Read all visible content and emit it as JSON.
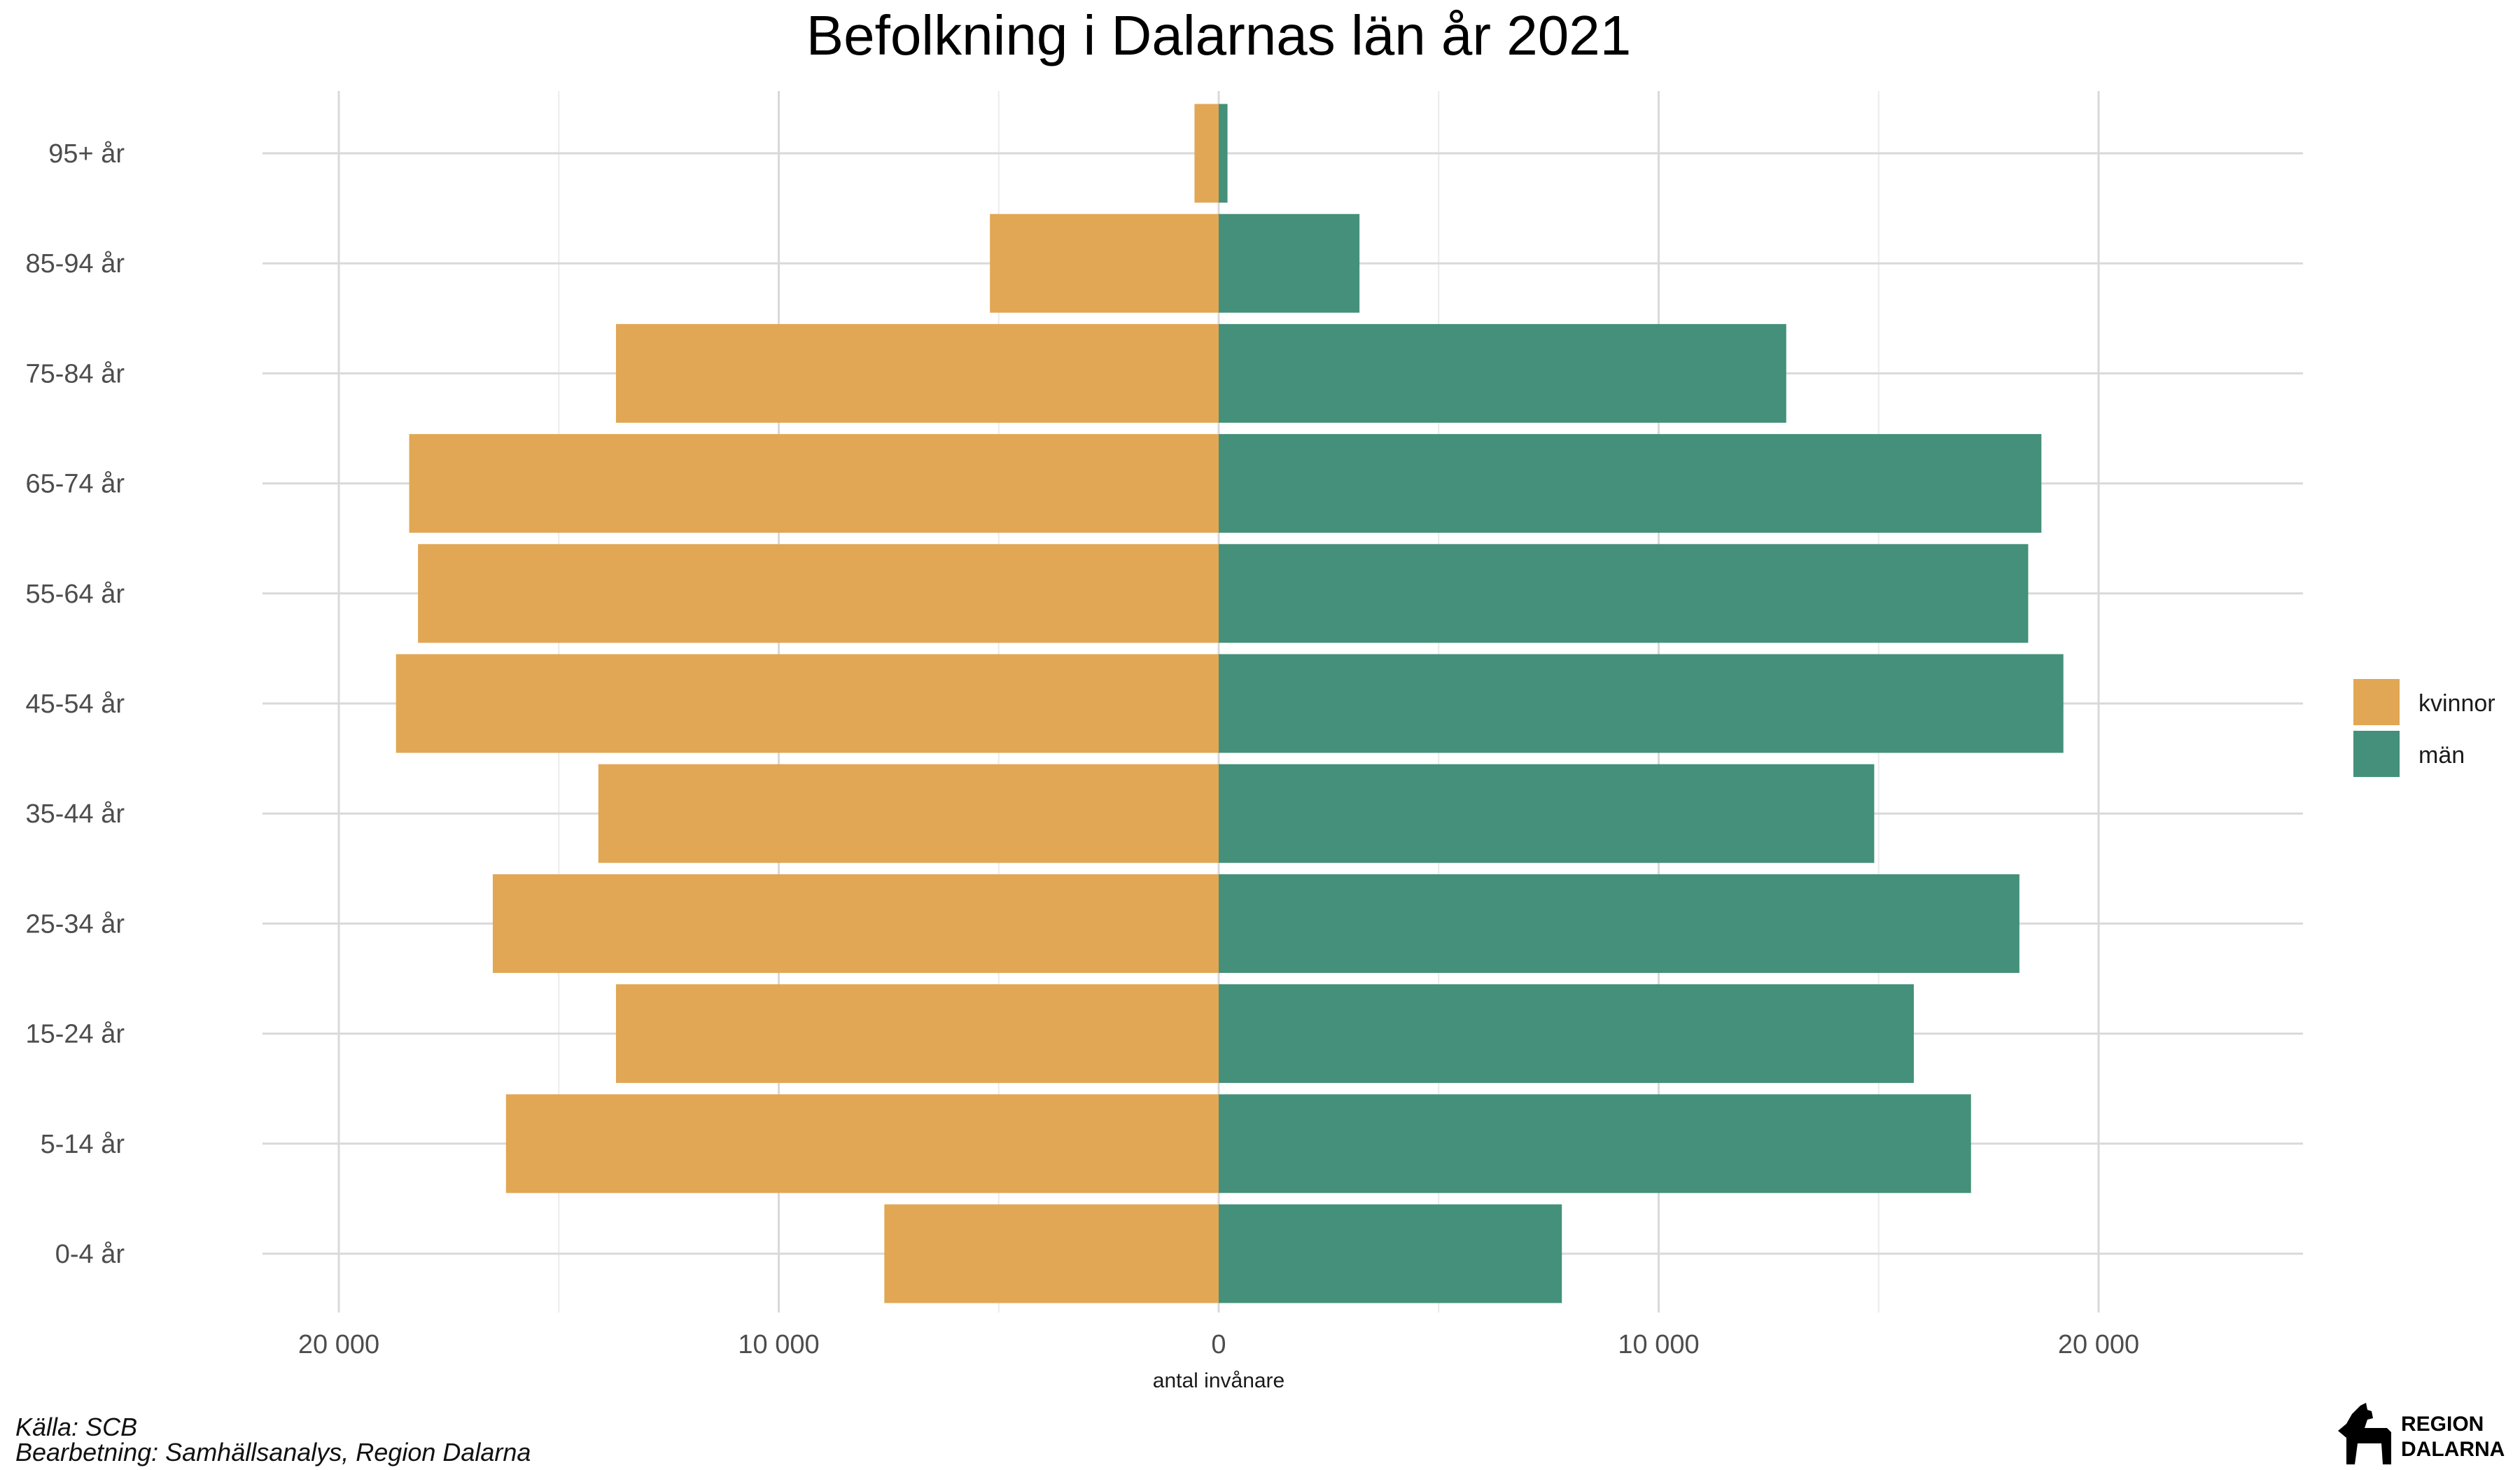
{
  "chart_data": {
    "type": "bar",
    "orientation": "horizontal-pyramid",
    "title": "Befolkning i Dalarnas län år 2021",
    "xlabel": "antal invånare",
    "ylabel": "",
    "xlim": [
      -24500,
      24500
    ],
    "xticks": [
      -20000,
      -10000,
      0,
      10000,
      20000
    ],
    "xtick_labels": [
      "20 000",
      "10 000",
      "0",
      "10 000",
      "20 000"
    ],
    "categories": [
      "0-4 år",
      "5-14 år",
      "15-24 år",
      "25-34 år",
      "35-44 år",
      "45-54 år",
      "55-64 år",
      "65-74 år",
      "75-84 år",
      "85-94 år",
      "95+ år"
    ],
    "series": [
      {
        "name": "kvinnor",
        "color": "#E1A754",
        "side": "left",
        "values": [
          7600,
          16200,
          13700,
          16500,
          14100,
          18700,
          18200,
          18400,
          13700,
          5200,
          550
        ]
      },
      {
        "name": "män",
        "color": "#44907A",
        "side": "right",
        "values": [
          7800,
          17100,
          15800,
          18200,
          14900,
          19200,
          18400,
          18700,
          12900,
          3200,
          200
        ]
      }
    ],
    "grid": true,
    "legend": "right"
  },
  "caption": {
    "source": "Källa: SCB",
    "processing": "Bearbetning: Samhällsanalys, Region Dalarna"
  },
  "logo": {
    "line1": "REGION",
    "line2": "DALARNA"
  }
}
